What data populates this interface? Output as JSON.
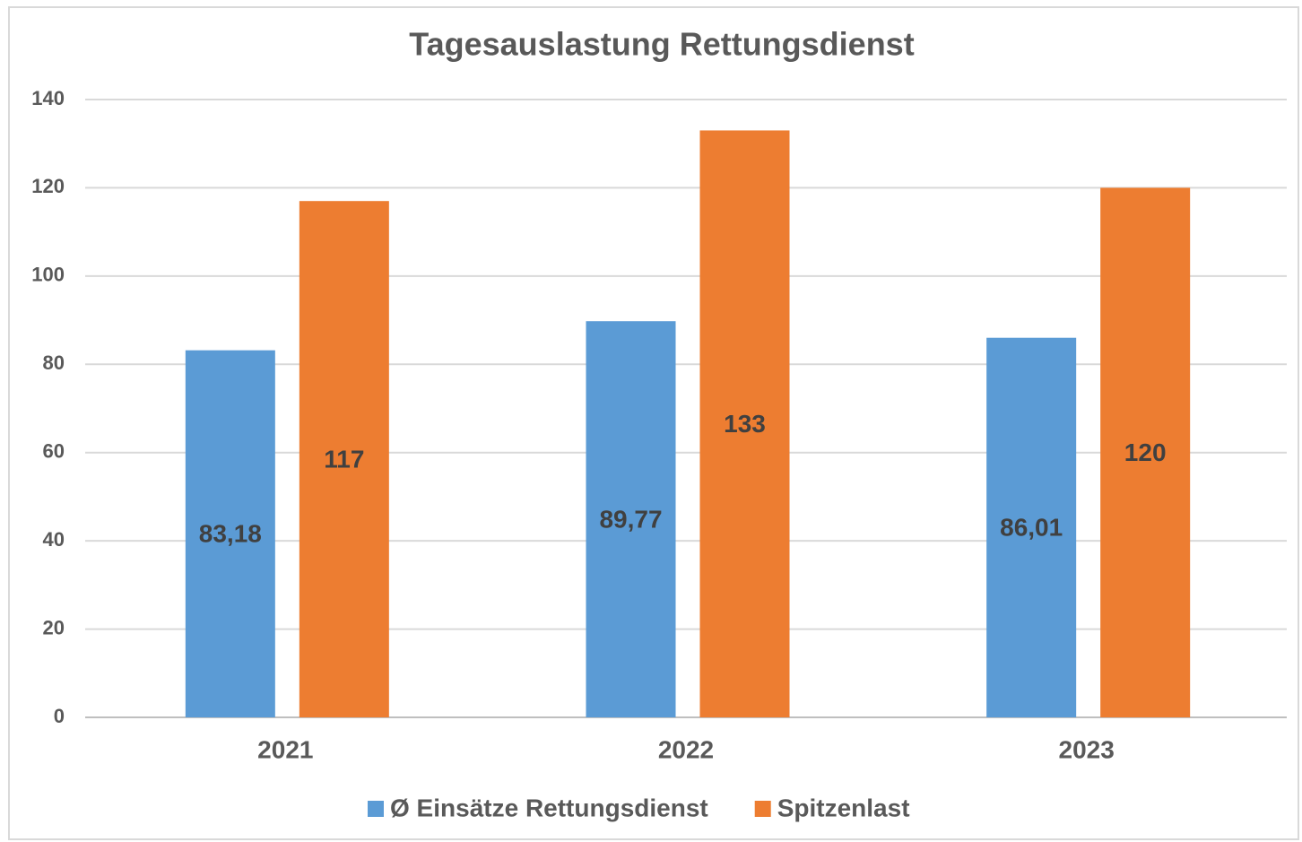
{
  "chart_data": {
    "type": "bar",
    "title": "Tagesauslastung Rettungsdienst",
    "categories": [
      "2021",
      "2022",
      "2023"
    ],
    "series": [
      {
        "name": "Ø Einsätze Rettungsdienst",
        "color": "#5b9bd5",
        "values": [
          83.18,
          89.77,
          86.01
        ],
        "value_labels": [
          "83,18",
          "89,77",
          "86,01"
        ]
      },
      {
        "name": "Spitzenlast",
        "color": "#ed7d31",
        "values": [
          117,
          133,
          120
        ]
      }
    ],
    "ylim": [
      0,
      140
    ],
    "yticks": [
      0,
      20,
      40,
      60,
      80,
      100,
      120,
      140
    ],
    "grid": true,
    "legend": "bottom"
  }
}
